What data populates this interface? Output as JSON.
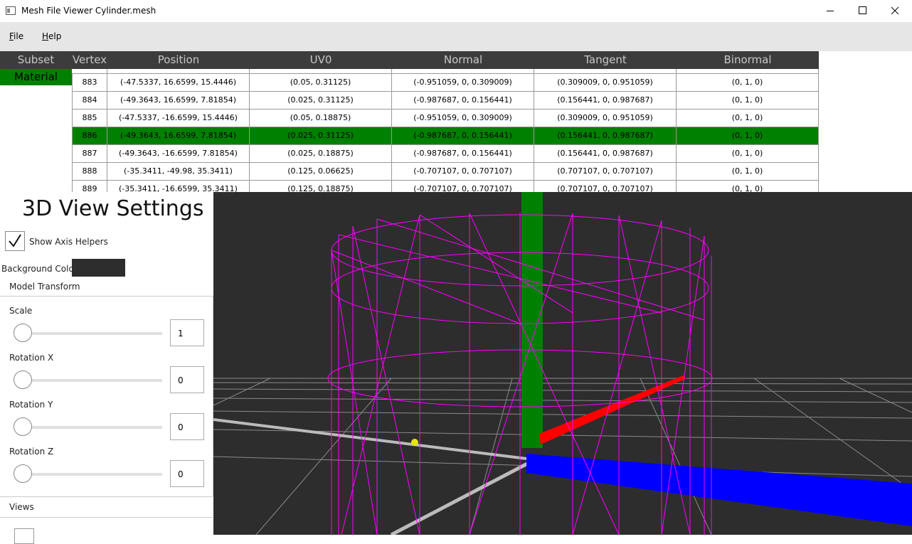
{
  "window": {
    "title": "Mesh File Viewer Cylinder.mesh"
  },
  "menu": [
    "File",
    "Help"
  ],
  "subset": {
    "header": "Subset",
    "rows": [
      "Material"
    ]
  },
  "table": {
    "headers": [
      "Vertex",
      "Position",
      "UV0",
      "Normal",
      "Tangent",
      "Binormal"
    ],
    "rows": [
      [
        "883",
        "(-47.5337, 16.6599, 15.4446)",
        "(0.05, 0.31125)",
        "(-0.951059, 0, 0.309009)",
        "(0.309009, 0, 0.951059)",
        "(0, 1, 0)"
      ],
      [
        "884",
        "(-49.3643, 16.6599, 7.81854)",
        "(0.025, 0.31125)",
        "(-0.987687, 0, 0.156441)",
        "(0.156441, 0, 0.987687)",
        "(0, 1, 0)"
      ],
      [
        "885",
        "(-47.5337, -16.6599, 15.4446)",
        "(0.05, 0.18875)",
        "(-0.951059, 0, 0.309009)",
        "(0.309009, 0, 0.951059)",
        "(0, 1, 0)"
      ],
      [
        "886",
        "(-49.3643, 16.6599, 7.81854)",
        "(0.025, 0.31125)",
        "(-0.987687, 0, 0.156441)",
        "(0.156441, 0, 0.987687)",
        "(0, 1, 0)"
      ],
      [
        "887",
        "(-49.3643, -16.6599, 7.81854)",
        "(0.025, 0.18875)",
        "(-0.987687, 0, 0.156441)",
        "(0.156441, 0, 0.987687)",
        "(0, 1, 0)"
      ],
      [
        "888",
        "(-35.3411, -49.98, 35.3411)",
        "(0.125, 0.06625)",
        "(-0.707107, 0, 0.707107)",
        "(0.707107, 0, 0.707107)",
        "(0, 1, 0)"
      ],
      [
        "889",
        "(-35.3411, -16.6599, 35.3411)",
        "(0.125, 0.18875)",
        "(-0.707107, 0, 0.707107)",
        "(0.707107, 0, 0.707107)",
        "(0, 1, 0)"
      ]
    ]
  },
  "settings": {
    "title": "3D View Settings",
    "show_axis_helpers": "Show Axis Helpers",
    "background_color": "Background Color",
    "model_transform": "Model Transform",
    "sliders": [
      {
        "label": "Scale",
        "value": "1"
      },
      {
        "label": "Rotation X",
        "value": "0"
      },
      {
        "label": "Rotation Y",
        "value": "0"
      },
      {
        "label": "Rotation Z",
        "value": "0"
      }
    ],
    "views": "Views"
  }
}
